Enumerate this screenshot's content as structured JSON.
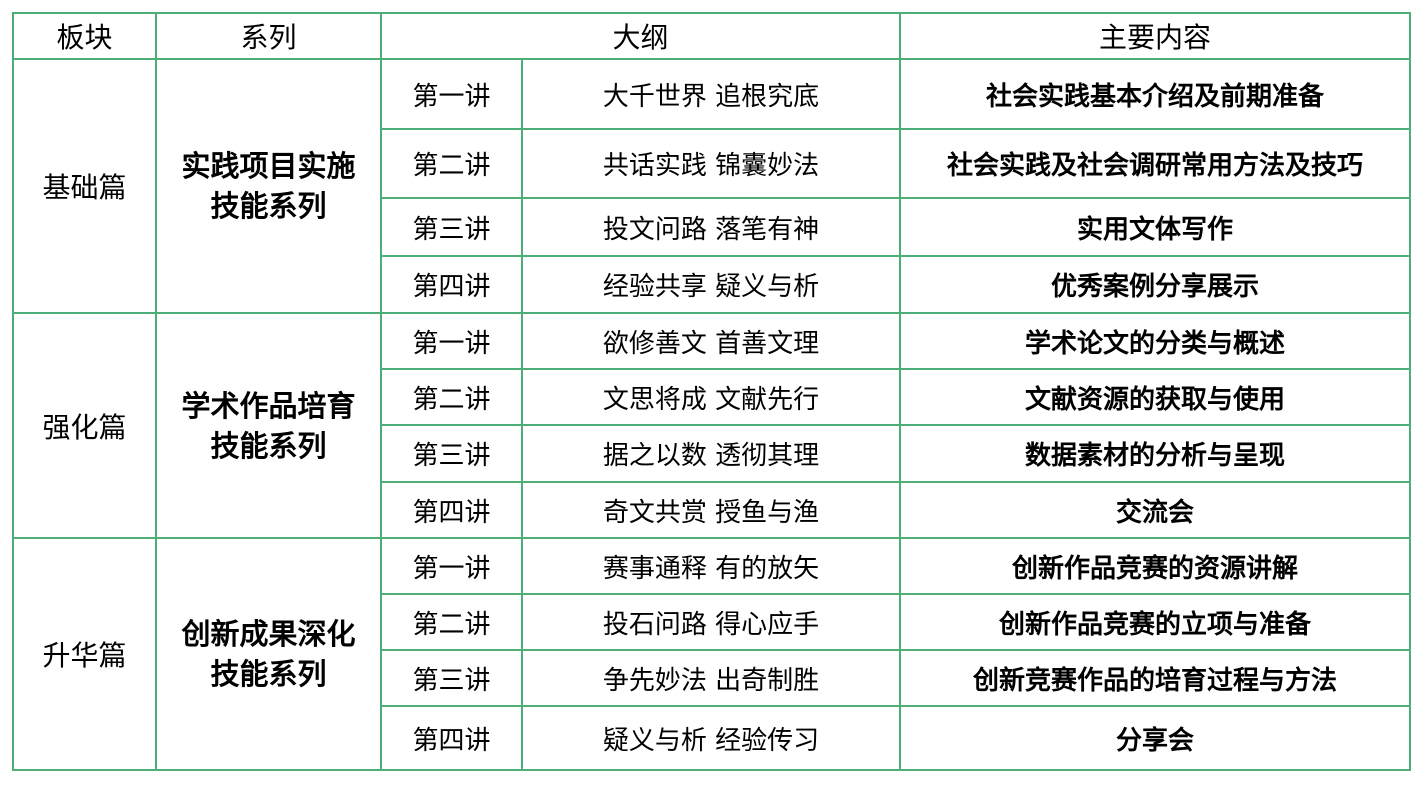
{
  "headers": {
    "section": "板块",
    "series": "系列",
    "outline": "大纲",
    "content": "主要内容"
  },
  "border_color": "#4caf78",
  "groups": [
    {
      "section": "基础篇",
      "series_line1": "实践项目实施",
      "series_line2": "技能系列",
      "rows": [
        {
          "lecture": "第一讲",
          "outline": "大千世界 追根究底",
          "content": "社会实践基本介绍及前期准备"
        },
        {
          "lecture": "第二讲",
          "outline": "共话实践 锦囊妙法",
          "content": "社会实践及社会调研常用方法及技巧"
        },
        {
          "lecture": "第三讲",
          "outline": "投文问路 落笔有神",
          "content": "实用文体写作"
        },
        {
          "lecture": "第四讲",
          "outline": "经验共享 疑义与析",
          "content": "优秀案例分享展示"
        }
      ]
    },
    {
      "section": "强化篇",
      "series_line1": "学术作品培育",
      "series_line2": "技能系列",
      "rows": [
        {
          "lecture": "第一讲",
          "outline": "欲修善文 首善文理",
          "content": "学术论文的分类与概述"
        },
        {
          "lecture": "第二讲",
          "outline": "文思将成 文献先行",
          "content": "文献资源的获取与使用"
        },
        {
          "lecture": "第三讲",
          "outline": "据之以数 透彻其理",
          "content": "数据素材的分析与呈现"
        },
        {
          "lecture": "第四讲",
          "outline": "奇文共赏 授鱼与渔",
          "content": "交流会"
        }
      ]
    },
    {
      "section": "升华篇",
      "series_line1": "创新成果深化",
      "series_line2": "技能系列",
      "rows": [
        {
          "lecture": "第一讲",
          "outline": "赛事通释 有的放矢",
          "content": "创新作品竞赛的资源讲解"
        },
        {
          "lecture": "第二讲",
          "outline": "投石问路 得心应手",
          "content": "创新作品竞赛的立项与准备"
        },
        {
          "lecture": "第三讲",
          "outline": "争先妙法 出奇制胜",
          "content": "创新竞赛作品的培育过程与方法"
        },
        {
          "lecture": "第四讲",
          "outline": "疑义与析 经验传习",
          "content": "分享会"
        }
      ]
    }
  ]
}
